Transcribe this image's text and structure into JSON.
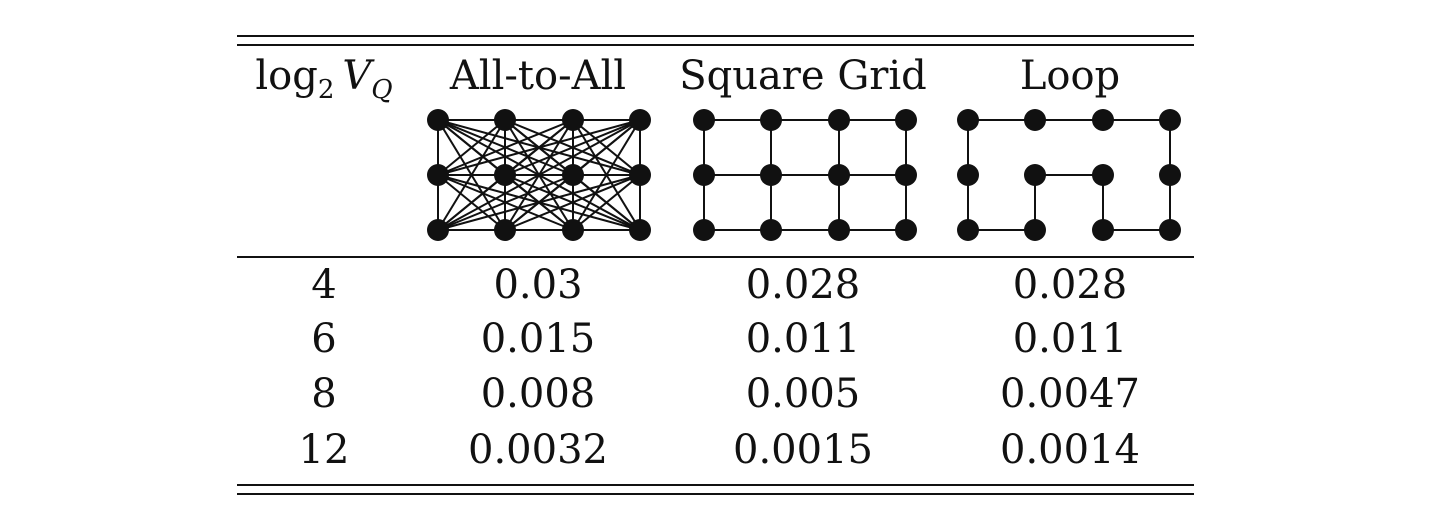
{
  "table": {
    "header": {
      "vq_base": "log",
      "vq_sub": "2",
      "vq_var": "V",
      "vq_var_sub": "Q",
      "col1": "All-to-All",
      "col2": "Square Grid",
      "col3": "Loop"
    },
    "rows": [
      {
        "n": "4",
        "all_to_all": "0.03",
        "square_grid": "0.028",
        "loop": "0.028"
      },
      {
        "n": "6",
        "all_to_all": "0.015",
        "square_grid": "0.011",
        "loop": "0.011"
      },
      {
        "n": "8",
        "all_to_all": "0.008",
        "square_grid": "0.005",
        "loop": "0.0047"
      },
      {
        "n": "12",
        "all_to_all": "0.0032",
        "square_grid": "0.0015",
        "loop": "0.0014"
      }
    ]
  },
  "graphs": {
    "all_to_all": "complete-graph-icon",
    "square_grid": "grid-graph-icon",
    "loop": "loop-graph-icon"
  }
}
